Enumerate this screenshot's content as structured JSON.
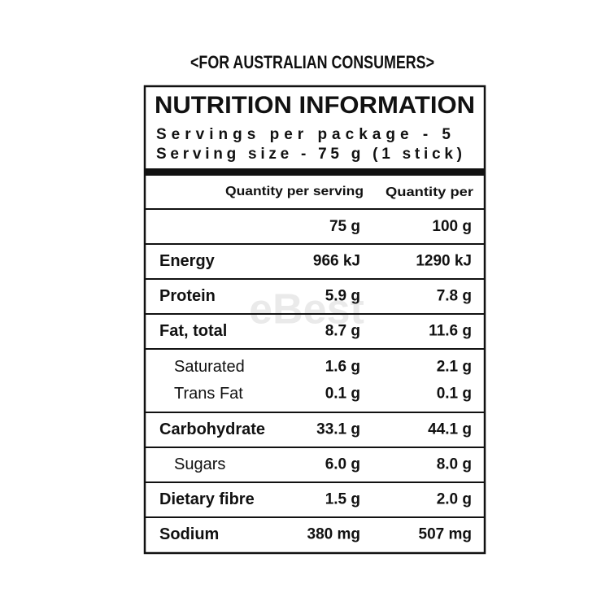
{
  "header": {
    "caption": "<FOR AUSTRALIAN CONSUMERS>",
    "title": "NUTRITION INFORMATION",
    "servings": "Servings per package - 5",
    "serving_size": "Serving size - 75 g (1 stick)"
  },
  "table": {
    "columns": [
      "Quantity per serving",
      "Quantity per"
    ],
    "units": [
      "75 g",
      "100 g"
    ],
    "groups": [
      [
        [
          "Energy",
          "966 kJ",
          "1290 kJ"
        ]
      ],
      [
        [
          "Protein",
          "5.9 g",
          "7.8 g"
        ]
      ],
      [
        [
          "Fat, total",
          "8.7 g",
          "11.6 g"
        ]
      ],
      [
        [
          "Saturated",
          "1.6 g",
          "2.1 g"
        ],
        [
          "Trans Fat",
          "0.1 g",
          "0.1 g"
        ]
      ],
      [
        [
          "Carbohydrate",
          "33.1 g",
          "44.1 g"
        ]
      ],
      [
        [
          "Sugars",
          "6.0 g",
          "8.0 g"
        ]
      ],
      [
        [
          "Dietary fibre",
          "1.5 g",
          "2.0 g"
        ]
      ],
      [
        [
          "Sodium",
          "380 mg",
          "507 mg"
        ]
      ]
    ]
  },
  "watermark": "eBest"
}
